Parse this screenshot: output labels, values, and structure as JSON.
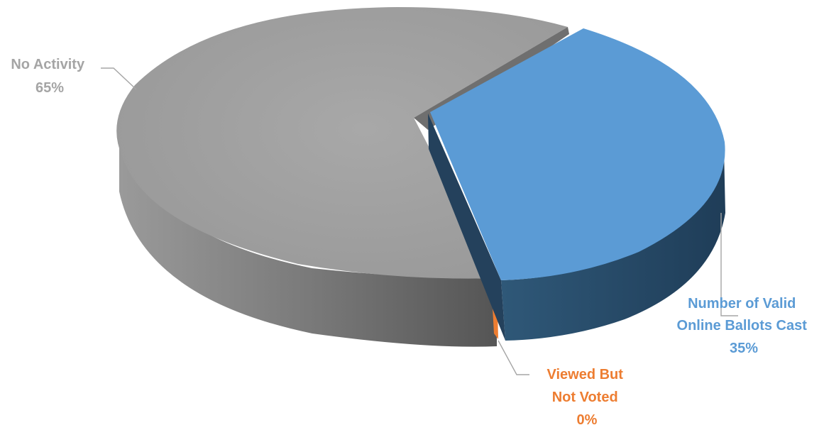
{
  "chart_data": {
    "type": "pie",
    "title": "",
    "series": [
      {
        "values": [
          35,
          0,
          65
        ],
        "categories": [
          "Number of Valid Online Ballots Cast",
          "Viewed But Not Voted",
          "No Activity"
        ]
      }
    ],
    "slices": [
      {
        "name": "Number of Valid Online Ballots Cast",
        "value": 35,
        "label_lines": [
          "Number of Valid",
          "Online Ballots Cast"
        ],
        "pct_label": "35%",
        "color": "#5b9bd5",
        "label_color": "#5b9bd5",
        "exploded": true
      },
      {
        "name": "Viewed But Not Voted",
        "value": 0,
        "label_lines": [
          "Viewed But",
          "Not Voted"
        ],
        "pct_label": "0%",
        "color": "#ed7d31",
        "label_color": "#ed7d31",
        "exploded": false
      },
      {
        "name": "No Activity",
        "value": 65,
        "label_lines": [
          "No Activity"
        ],
        "pct_label": "65%",
        "color": "#a5a5a5",
        "label_color": "#a5a5a5",
        "exploded": false
      }
    ],
    "legend": "none",
    "style": "3d"
  }
}
